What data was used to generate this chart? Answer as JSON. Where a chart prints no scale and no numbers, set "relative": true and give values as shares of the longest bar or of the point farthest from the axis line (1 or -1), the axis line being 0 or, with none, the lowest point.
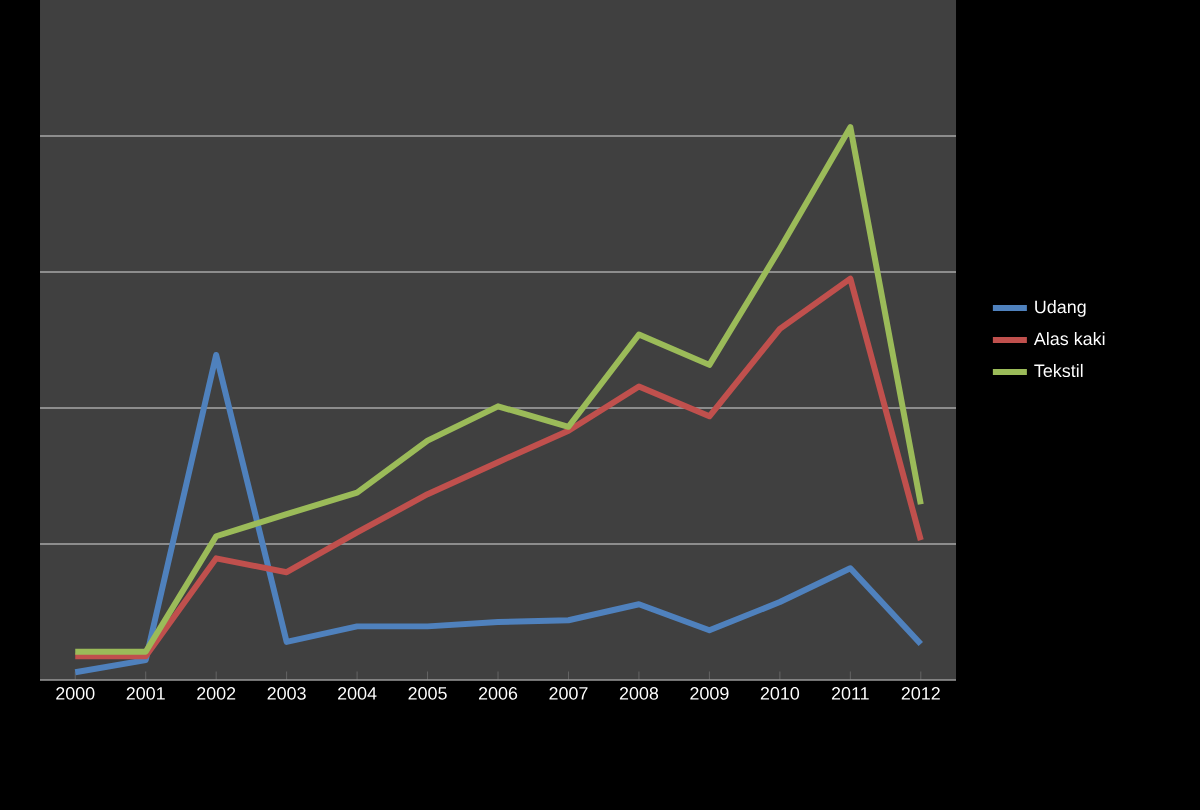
{
  "chart_data": {
    "type": "line",
    "relative": true,
    "grid": "y",
    "legend": "right",
    "marker": "none",
    "line_style": "solid",
    "categories": [
      "2000",
      "2001",
      "2002",
      "2003",
      "2004",
      "2005",
      "2006",
      "2007",
      "2008",
      "2009",
      "2010",
      "2011",
      "2012"
    ],
    "series": [
      {
        "name": "Udang",
        "color": "#4f81bd",
        "values": [
          0.014,
          0.036,
          0.588,
          0.069,
          0.097,
          0.097,
          0.105,
          0.108,
          0.137,
          0.09,
          0.141,
          0.202,
          0.065
        ]
      },
      {
        "name": "Alas kaki",
        "color": "#c0504d",
        "values": [
          0.043,
          0.043,
          0.22,
          0.195,
          0.267,
          0.336,
          0.394,
          0.451,
          0.531,
          0.477,
          0.635,
          0.726,
          0.253
        ]
      },
      {
        "name": "Tekstil",
        "color": "#9bbb59",
        "values": [
          0.051,
          0.051,
          0.26,
          0.3,
          0.339,
          0.433,
          0.495,
          0.458,
          0.625,
          0.57,
          0.78,
          1,
          0.318
        ]
      }
    ]
  }
}
